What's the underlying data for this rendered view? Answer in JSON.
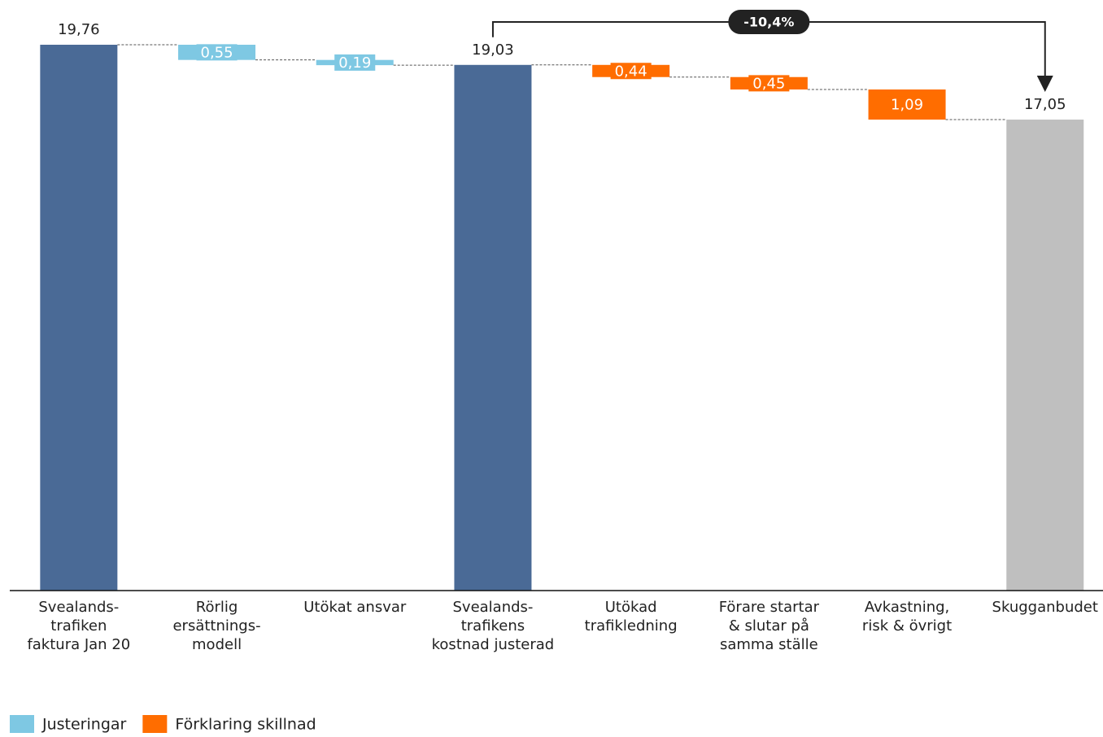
{
  "chart_data": {
    "type": "waterfall",
    "categories": [
      [
        "Svealands-",
        "trafiken",
        "faktura Jan 20"
      ],
      [
        "Rörlig",
        "ersättnings-",
        "modell"
      ],
      [
        "Utökat ansvar"
      ],
      [
        "Svealands-",
        "trafikens",
        "kostnad justerad"
      ],
      [
        "Utökad",
        "trafikledning"
      ],
      [
        "Förare startar",
        "& slutar på",
        "samma ställe"
      ],
      [
        "Avkastning,",
        "risk & övrigt"
      ],
      [
        "Skugganbudet"
      ]
    ],
    "values": [
      19.76,
      0.55,
      0.19,
      19.03,
      0.44,
      0.45,
      1.09,
      17.05
    ],
    "value_labels": [
      "19,76",
      "0,55",
      "0,19",
      "19,03",
      "0,44",
      "0,45",
      "1,09",
      "17,05"
    ],
    "totals": [
      true,
      false,
      false,
      true,
      false,
      false,
      false,
      true
    ],
    "bar_colors": [
      "#4a6a96",
      "#7ec8e3",
      "#7ec8e3",
      "#4a6a96",
      "#ff6d00",
      "#ff6d00",
      "#ff6d00",
      "#bfbfbf"
    ],
    "series": [
      {
        "name": "Justeringar",
        "color": "#7ec8e3"
      },
      {
        "name": "Förklaring skillnad",
        "color": "#ff6d00"
      }
    ],
    "annotation": {
      "text": "-10,4%",
      "from_category": 3,
      "to_category": 7
    }
  }
}
